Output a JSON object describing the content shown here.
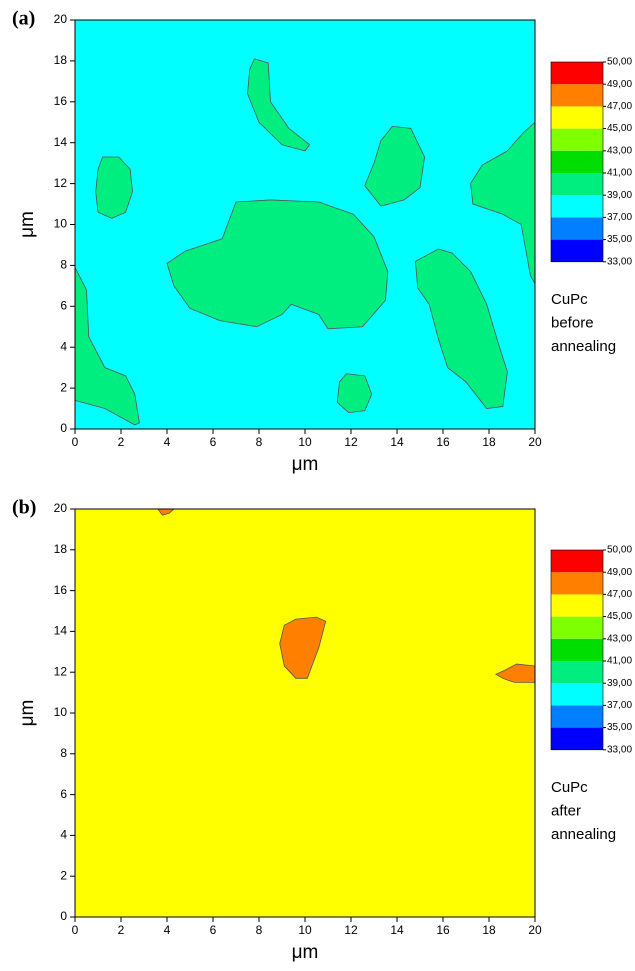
{
  "chart_data": [
    {
      "type": "contour",
      "panel_label": "(a)",
      "xlabel": "μm",
      "ylabel": "μm",
      "xlim": [
        0,
        20
      ],
      "ylim": [
        0,
        20
      ],
      "xticks": [
        0,
        2,
        4,
        6,
        8,
        10,
        12,
        14,
        16,
        18,
        20
      ],
      "yticks": [
        0,
        2,
        4,
        6,
        8,
        10,
        12,
        14,
        16,
        18,
        20
      ],
      "levels": [
        {
          "value": 33,
          "label": "33,00"
        },
        {
          "value": 35,
          "label": "35,00"
        },
        {
          "value": 37,
          "label": "37,00"
        },
        {
          "value": 39,
          "label": "39,00"
        },
        {
          "value": 41,
          "label": "41,00"
        },
        {
          "value": 43,
          "label": "43,00"
        },
        {
          "value": 45,
          "label": "45,00"
        },
        {
          "value": 47,
          "label": "47,00"
        },
        {
          "value": 49,
          "label": "49,00"
        },
        {
          "value": 50,
          "label": "50,00"
        }
      ],
      "level_colors": [
        "#0000ff",
        "#0080ff",
        "#00ffff",
        "#00ee80",
        "#00dd00",
        "#80ff00",
        "#ffff00",
        "#ff8000",
        "#ff0000"
      ],
      "background": "#00ffff",
      "annotation": [
        "CuPc",
        "before",
        "annealing"
      ],
      "regions": [
        {
          "color": "#00ee80",
          "x": [
            7.8,
            8.4,
            8.5,
            9.3,
            10.2,
            10.0,
            9.0,
            8.0,
            7.5,
            7.6
          ],
          "y": [
            18.1,
            17.9,
            16.0,
            14.7,
            13.9,
            13.6,
            13.9,
            15.0,
            16.4,
            17.6
          ]
        },
        {
          "color": "#00ee80",
          "x": [
            1.2,
            1.9,
            2.4,
            2.5,
            2.2,
            1.6,
            1.0,
            0.9,
            1.0
          ],
          "y": [
            13.3,
            13.3,
            12.7,
            11.6,
            10.6,
            10.3,
            10.6,
            11.6,
            12.7
          ]
        },
        {
          "color": "#00ee80",
          "x": [
            13.8,
            14.6,
            15.2,
            15.0,
            14.3,
            13.3,
            12.6,
            13.0,
            13.3
          ],
          "y": [
            14.8,
            14.7,
            13.3,
            11.8,
            11.2,
            10.9,
            11.9,
            13.0,
            14.1
          ]
        },
        {
          "color": "#00ee80",
          "x": [
            20.0,
            19.5,
            18.8,
            17.7,
            17.2,
            17.3,
            18.6,
            19.4,
            19.8,
            20.0
          ],
          "y": [
            15.0,
            14.5,
            13.6,
            12.9,
            12.0,
            11.0,
            10.5,
            10.0,
            7.5,
            7.1
          ]
        },
        {
          "color": "#00ee80",
          "x": [
            7.0,
            8.5,
            10.6,
            12.1,
            13.0,
            13.6,
            13.5,
            12.5,
            11.0,
            10.6,
            9.4,
            9.0,
            7.9,
            6.3,
            5.0,
            4.3,
            4.0,
            4.8,
            6.4
          ],
          "y": [
            11.1,
            11.2,
            11.1,
            10.5,
            9.4,
            7.7,
            6.3,
            5.0,
            4.9,
            5.6,
            6.1,
            5.6,
            5.0,
            5.3,
            5.9,
            7.0,
            8.1,
            8.7,
            9.3
          ]
        },
        {
          "color": "#00ee80",
          "x": [
            15.8,
            16.4,
            17.2,
            17.9,
            18.4,
            18.8,
            18.6,
            17.9,
            17.0,
            16.2,
            15.8,
            15.4,
            14.9,
            14.8
          ],
          "y": [
            8.8,
            8.6,
            7.7,
            6.1,
            4.2,
            2.8,
            1.1,
            1.0,
            2.3,
            3.0,
            4.4,
            6.1,
            6.9,
            8.2
          ]
        },
        {
          "color": "#00ee80",
          "x": [
            11.8,
            12.6,
            12.9,
            12.6,
            11.9,
            11.4,
            11.5
          ],
          "y": [
            2.7,
            2.6,
            1.7,
            0.9,
            0.8,
            1.3,
            2.3
          ]
        },
        {
          "color": "#00ee80",
          "x": [
            0.0,
            0.5,
            0.6,
            1.3,
            2.2,
            2.6,
            2.8,
            2.6,
            1.3,
            0.0
          ],
          "y": [
            7.9,
            6.8,
            4.5,
            3.0,
            2.6,
            1.7,
            0.3,
            0.2,
            1.0,
            1.4
          ]
        }
      ]
    },
    {
      "type": "contour",
      "panel_label": "(b)",
      "xlabel": "μm",
      "ylabel": "μm",
      "xlim": [
        0,
        20
      ],
      "ylim": [
        0,
        20
      ],
      "xticks": [
        0,
        2,
        4,
        6,
        8,
        10,
        12,
        14,
        16,
        18,
        20
      ],
      "yticks": [
        0,
        2,
        4,
        6,
        8,
        10,
        12,
        14,
        16,
        18,
        20
      ],
      "levels": [
        {
          "value": 33,
          "label": "33,00"
        },
        {
          "value": 35,
          "label": "35,00"
        },
        {
          "value": 37,
          "label": "37,00"
        },
        {
          "value": 39,
          "label": "39,00"
        },
        {
          "value": 41,
          "label": "41,00"
        },
        {
          "value": 43,
          "label": "43,00"
        },
        {
          "value": 45,
          "label": "45,00"
        },
        {
          "value": 47,
          "label": "47,00"
        },
        {
          "value": 49,
          "label": "49,00"
        },
        {
          "value": 50,
          "label": "50,00"
        }
      ],
      "level_colors": [
        "#0000ff",
        "#0080ff",
        "#00ffff",
        "#00ee80",
        "#00dd00",
        "#80ff00",
        "#ffff00",
        "#ff8000",
        "#ff0000"
      ],
      "background": "#ffff00",
      "annotation": [
        "CuPc",
        "after",
        "annealing"
      ],
      "regions": [
        {
          "color": "#ff8000",
          "x": [
            3.6,
            4.3,
            4.1,
            3.8
          ],
          "y": [
            20.0,
            20.0,
            19.8,
            19.7
          ]
        },
        {
          "color": "#ff8000",
          "x": [
            9.6,
            10.5,
            10.9,
            10.6,
            10.1,
            9.6,
            9.1,
            8.9,
            9.1
          ],
          "y": [
            14.6,
            14.7,
            14.5,
            13.2,
            11.7,
            11.7,
            12.3,
            13.4,
            14.3
          ]
        },
        {
          "color": "#ff8000",
          "x": [
            19.2,
            20.0,
            20.0,
            19.1,
            18.6,
            18.3,
            18.7
          ],
          "y": [
            12.4,
            12.3,
            11.5,
            11.5,
            11.7,
            11.9,
            12.1
          ]
        }
      ]
    }
  ]
}
